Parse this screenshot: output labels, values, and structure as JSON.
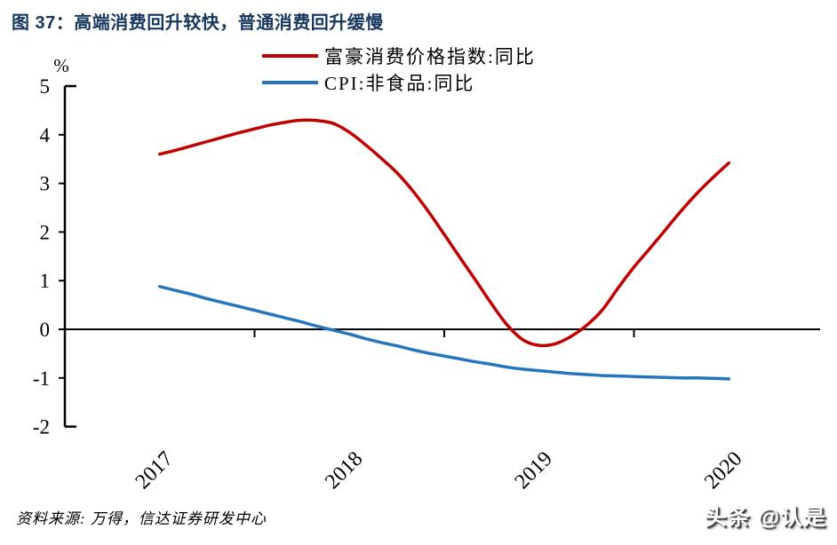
{
  "header": {
    "title": "图 37：高端消费回升较快，普通消费回升缓慢",
    "title_color": "#17375E"
  },
  "legend": [
    {
      "label": "富豪消费价格指数:同比",
      "color": "#C00000"
    },
    {
      "label": "CPI:非食品:同比",
      "color": "#2576BE"
    }
  ],
  "chart_data": {
    "type": "line",
    "title": "图 37：高端消费回升较快，普通消费回升缓慢",
    "xlabel": "",
    "ylabel": "%",
    "ylim": [
      -2,
      5
    ],
    "yticks": [
      5,
      4,
      3,
      2,
      1,
      0,
      -1,
      -2
    ],
    "x_year_labels": [
      "2017",
      "2018",
      "2019",
      "2020"
    ],
    "x_boundary_tick_years": [
      2018,
      2019,
      2020
    ],
    "x_range_years": [
      2017,
      2021
    ],
    "grid": false,
    "legend_position": "top",
    "axis_color": "#000000",
    "months": [
      "2017-06",
      "2017-07",
      "2017-08",
      "2017-09",
      "2017-10",
      "2017-11",
      "2017-12",
      "2018-01",
      "2018-02",
      "2018-03",
      "2018-04",
      "2018-05",
      "2018-06",
      "2018-07",
      "2018-08",
      "2018-09",
      "2018-10",
      "2018-11",
      "2018-12",
      "2019-01",
      "2019-02",
      "2019-03",
      "2019-04",
      "2019-05",
      "2019-06",
      "2019-07",
      "2019-08",
      "2019-09",
      "2019-10",
      "2019-11",
      "2019-12",
      "2020-01",
      "2020-02",
      "2020-03",
      "2020-04",
      "2020-05",
      "2020-06"
    ],
    "series": [
      {
        "name": "富豪消费价格指数:同比",
        "color": "#C00000",
        "values": [
          3.6,
          3.68,
          3.77,
          3.86,
          3.95,
          4.04,
          4.12,
          4.2,
          4.26,
          4.3,
          4.29,
          4.23,
          4.05,
          3.8,
          3.52,
          3.22,
          2.85,
          2.42,
          1.95,
          1.47,
          1.0,
          0.52,
          0.08,
          -0.22,
          -0.33,
          -0.3,
          -0.15,
          0.08,
          0.4,
          0.85,
          1.28,
          1.66,
          2.05,
          2.44,
          2.8,
          3.12,
          3.42
        ]
      },
      {
        "name": "CPI:非食品:同比",
        "color": "#2576BE",
        "values": [
          0.88,
          0.8,
          0.72,
          0.63,
          0.55,
          0.47,
          0.39,
          0.31,
          0.23,
          0.15,
          0.06,
          -0.02,
          -0.1,
          -0.19,
          -0.27,
          -0.34,
          -0.42,
          -0.49,
          -0.55,
          -0.61,
          -0.67,
          -0.72,
          -0.78,
          -0.82,
          -0.85,
          -0.88,
          -0.91,
          -0.93,
          -0.95,
          -0.96,
          -0.97,
          -0.98,
          -0.99,
          -1.0,
          -1.0,
          -1.01,
          -1.02
        ]
      }
    ]
  },
  "footer": {
    "source": "资料来源: 万得，信达证券研发中心",
    "watermark": "头条 @认是"
  }
}
